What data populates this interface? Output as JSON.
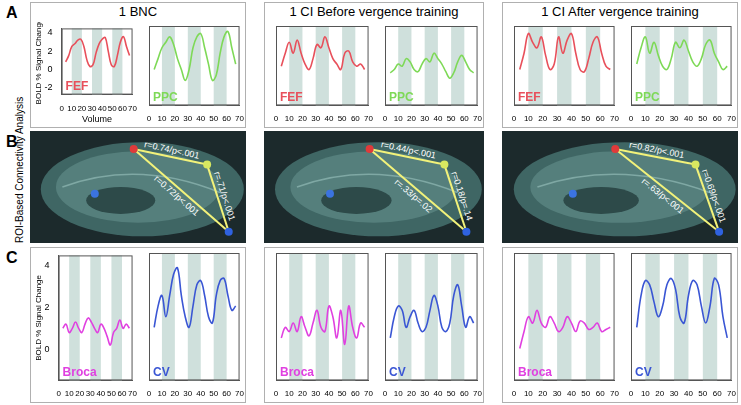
{
  "panel_labels": [
    "A",
    "B",
    "C"
  ],
  "columns": [
    "1 BNC",
    "1 CI Before vergence training",
    "1 CI After vergence training"
  ],
  "connectivity_label": "ROI-Based Connectivity Analysis",
  "connectivity": [
    {
      "edges": [
        "r=0.74/p<.001",
        "r=.71/p<.001",
        "r=0.72/p<.001"
      ]
    },
    {
      "edges": [
        "r=0.44/p<.001",
        "r=0.18/p=.14",
        "r=.33/p=.02"
      ]
    },
    {
      "edges": [
        "r=0.82/p<.001",
        "r=0.69/p<.001",
        "r=.63/p<.001"
      ]
    }
  ],
  "chart_data": [
    {
      "type": "line",
      "x_label": "Volume",
      "y_label": "BOLD % Signal Change",
      "grid": false,
      "xlim": [
        0,
        70
      ],
      "xticks": [
        0,
        10,
        20,
        30,
        40,
        50,
        60,
        70
      ],
      "ylim": [
        -2.8,
        4.5
      ],
      "yticks": [
        -2,
        0,
        2,
        4
      ],
      "task_blocks": [
        [
          10,
          20
        ],
        [
          30,
          40
        ],
        [
          50,
          60
        ]
      ],
      "x": [
        4,
        7,
        10,
        13,
        16,
        19,
        22,
        25,
        28,
        31,
        34,
        37,
        40,
        43,
        46,
        49,
        52,
        55,
        58,
        61,
        64,
        67
      ],
      "series": [
        {
          "name": "FEF",
          "color": "#e8505b",
          "values": [
            0.8,
            1.5,
            2.5,
            2.8,
            3.2,
            3.3,
            2.5,
            1.0,
            0.3,
            0.5,
            1.8,
            2.8,
            3.3,
            3.5,
            2.0,
            0.5,
            0.3,
            1.5,
            3.0,
            3.6,
            2.5,
            1.5
          ]
        }
      ]
    },
    {
      "type": "line",
      "grid": false,
      "tick_labels": "x",
      "xlim": [
        0,
        70
      ],
      "xticks": [
        0,
        10,
        20,
        30,
        40,
        50,
        60,
        70
      ],
      "ylim": [
        -2.8,
        4.5
      ],
      "yticks": [
        -2,
        0,
        2,
        4
      ],
      "task_blocks": [
        [
          10,
          20
        ],
        [
          30,
          40
        ],
        [
          50,
          60
        ]
      ],
      "x": [
        4,
        7,
        10,
        13,
        16,
        19,
        22,
        25,
        28,
        31,
        34,
        37,
        40,
        43,
        46,
        49,
        52,
        55,
        58,
        61,
        64,
        67
      ],
      "series": [
        {
          "name": "PPC",
          "color": "#7ed957",
          "values": [
            0.5,
            1.5,
            2.5,
            3.0,
            3.5,
            2.8,
            1.5,
            0.5,
            -0.5,
            0.5,
            2.5,
            3.5,
            3.8,
            2.5,
            1.0,
            -0.5,
            0.0,
            2.0,
            3.5,
            4.0,
            2.5,
            1.0
          ]
        }
      ]
    },
    {
      "type": "line",
      "grid": false,
      "tick_labels": "x",
      "xlim": [
        0,
        70
      ],
      "xticks": [
        0,
        10,
        20,
        30,
        40,
        50,
        60,
        70
      ],
      "ylim": [
        -2.8,
        4.5
      ],
      "yticks": [
        -2,
        0,
        2,
        4
      ],
      "task_blocks": [
        [
          10,
          20
        ],
        [
          30,
          40
        ],
        [
          50,
          60
        ]
      ],
      "x": [
        4,
        7,
        10,
        13,
        16,
        19,
        22,
        25,
        28,
        31,
        34,
        37,
        40,
        43,
        46,
        49,
        52,
        55,
        58,
        61,
        64,
        67
      ],
      "series": [
        {
          "name": "FEF",
          "color": "#e8505b",
          "values": [
            0.8,
            2.0,
            3.0,
            2.0,
            3.2,
            2.0,
            1.0,
            0.5,
            1.5,
            2.8,
            2.5,
            3.5,
            2.5,
            1.5,
            1.0,
            0.5,
            2.0,
            2.2,
            1.2,
            0.8,
            1.0,
            0.5
          ]
        }
      ]
    },
    {
      "type": "line",
      "grid": false,
      "tick_labels": "x",
      "xlim": [
        0,
        70
      ],
      "xticks": [
        0,
        10,
        20,
        30,
        40,
        50,
        60,
        70
      ],
      "ylim": [
        -2.8,
        4.5
      ],
      "yticks": [
        -2,
        0,
        2,
        4
      ],
      "task_blocks": [
        [
          10,
          20
        ],
        [
          30,
          40
        ],
        [
          50,
          60
        ]
      ],
      "x": [
        4,
        7,
        10,
        13,
        16,
        19,
        22,
        25,
        28,
        31,
        34,
        37,
        40,
        43,
        46,
        49,
        52,
        55,
        58,
        61,
        64,
        67
      ],
      "series": [
        {
          "name": "PPC",
          "color": "#7ed957",
          "values": [
            0.2,
            0.5,
            1.0,
            0.8,
            1.5,
            1.2,
            0.5,
            0.3,
            1.0,
            1.5,
            1.2,
            2.0,
            1.5,
            1.0,
            0.3,
            -0.3,
            0.2,
            1.2,
            1.8,
            1.2,
            0.5,
            0.2
          ]
        }
      ]
    },
    {
      "type": "line",
      "grid": false,
      "tick_labels": "x",
      "xlim": [
        0,
        70
      ],
      "xticks": [
        0,
        10,
        20,
        30,
        40,
        50,
        60,
        70
      ],
      "ylim": [
        -2.8,
        4.5
      ],
      "yticks": [
        -2,
        0,
        2,
        4
      ],
      "task_blocks": [
        [
          10,
          20
        ],
        [
          30,
          40
        ],
        [
          50,
          60
        ]
      ],
      "x": [
        4,
        7,
        10,
        13,
        16,
        19,
        22,
        25,
        28,
        31,
        34,
        37,
        40,
        43,
        46,
        49,
        52,
        55,
        58,
        61,
        64,
        67
      ],
      "series": [
        {
          "name": "FEF",
          "color": "#e8505b",
          "values": [
            0.5,
            2.0,
            3.8,
            3.0,
            2.5,
            3.5,
            1.8,
            0.5,
            1.0,
            3.5,
            2.0,
            3.2,
            3.8,
            2.0,
            0.5,
            0.3,
            1.5,
            3.0,
            3.5,
            2.0,
            0.8,
            0.5
          ]
        }
      ]
    },
    {
      "type": "line",
      "grid": false,
      "tick_labels": "x",
      "xlim": [
        0,
        70
      ],
      "xticks": [
        0,
        10,
        20,
        30,
        40,
        50,
        60,
        70
      ],
      "ylim": [
        -2.8,
        4.5
      ],
      "yticks": [
        -2,
        0,
        2,
        4
      ],
      "task_blocks": [
        [
          10,
          20
        ],
        [
          30,
          40
        ],
        [
          50,
          60
        ]
      ],
      "x": [
        4,
        7,
        10,
        13,
        16,
        19,
        22,
        25,
        28,
        31,
        34,
        37,
        40,
        43,
        46,
        49,
        52,
        55,
        58,
        61,
        64,
        67
      ],
      "series": [
        {
          "name": "PPC",
          "color": "#7ed957",
          "values": [
            1.0,
            2.5,
            3.5,
            2.0,
            3.0,
            1.8,
            0.8,
            0.5,
            1.5,
            3.0,
            2.5,
            3.2,
            2.2,
            1.2,
            0.8,
            1.5,
            2.8,
            3.2,
            2.0,
            1.2,
            0.5,
            0.8
          ]
        }
      ]
    },
    {
      "type": "line",
      "y_label": "BOLD % Signal Change",
      "grid": false,
      "xlim": [
        0,
        70
      ],
      "xticks": [
        0,
        10,
        20,
        30,
        40,
        50,
        60,
        70
      ],
      "ylim": [
        -1.5,
        4.5
      ],
      "yticks": [
        0,
        2,
        4
      ],
      "task_blocks": [
        [
          10,
          20
        ],
        [
          30,
          40
        ],
        [
          50,
          60
        ]
      ],
      "x": [
        4,
        7,
        10,
        13,
        16,
        19,
        22,
        25,
        28,
        31,
        34,
        37,
        40,
        43,
        46,
        49,
        52,
        55,
        58,
        61,
        64,
        67
      ],
      "series": [
        {
          "name": "Broca",
          "color": "#e040e0",
          "values": [
            1.0,
            1.2,
            0.8,
            1.0,
            1.3,
            1.0,
            0.8,
            1.2,
            1.5,
            1.3,
            1.0,
            0.8,
            1.2,
            1.0,
            0.6,
            0.2,
            0.8,
            1.0,
            1.4,
            1.0,
            1.2,
            1.0
          ]
        }
      ]
    },
    {
      "type": "line",
      "grid": false,
      "tick_labels": "x",
      "xlim": [
        0,
        70
      ],
      "xticks": [
        0,
        10,
        20,
        30,
        40,
        50,
        60,
        70
      ],
      "ylim": [
        -1.5,
        4.5
      ],
      "yticks": [
        0,
        2,
        4
      ],
      "task_blocks": [
        [
          10,
          20
        ],
        [
          30,
          40
        ],
        [
          50,
          60
        ]
      ],
      "x": [
        4,
        7,
        10,
        13,
        16,
        19,
        22,
        25,
        28,
        31,
        34,
        37,
        40,
        43,
        46,
        49,
        52,
        55,
        58,
        61,
        64,
        67
      ],
      "series": [
        {
          "name": "CV",
          "color": "#3a56d4",
          "values": [
            1.0,
            2.0,
            2.5,
            1.5,
            2.5,
            3.5,
            3.8,
            2.5,
            1.5,
            1.0,
            2.0,
            3.0,
            3.2,
            2.5,
            1.5,
            1.2,
            2.5,
            3.2,
            3.3,
            2.5,
            1.8,
            2.0
          ]
        }
      ]
    },
    {
      "type": "line",
      "grid": false,
      "tick_labels": "x",
      "xlim": [
        0,
        70
      ],
      "xticks": [
        0,
        10,
        20,
        30,
        40,
        50,
        60,
        70
      ],
      "ylim": [
        -1.5,
        4.5
      ],
      "yticks": [
        0,
        2,
        4
      ],
      "task_blocks": [
        [
          10,
          20
        ],
        [
          30,
          40
        ],
        [
          50,
          60
        ]
      ],
      "x": [
        4,
        7,
        10,
        13,
        16,
        19,
        22,
        25,
        28,
        31,
        34,
        37,
        40,
        43,
        46,
        49,
        52,
        55,
        58,
        61,
        64,
        67
      ],
      "series": [
        {
          "name": "Broca",
          "color": "#e040e0",
          "values": [
            0.5,
            1.0,
            0.8,
            1.2,
            0.8,
            1.5,
            1.0,
            0.6,
            1.2,
            1.8,
            1.0,
            0.8,
            2.0,
            1.5,
            0.5,
            1.8,
            0.2,
            2.0,
            1.0,
            0.5,
            1.2,
            1.0
          ]
        }
      ]
    },
    {
      "type": "line",
      "grid": false,
      "tick_labels": "x",
      "xlim": [
        0,
        70
      ],
      "xticks": [
        0,
        10,
        20,
        30,
        40,
        50,
        60,
        70
      ],
      "ylim": [
        -1.5,
        4.5
      ],
      "yticks": [
        0,
        2,
        4
      ],
      "task_blocks": [
        [
          10,
          20
        ],
        [
          30,
          40
        ],
        [
          50,
          60
        ]
      ],
      "x": [
        4,
        7,
        10,
        13,
        16,
        19,
        22,
        25,
        28,
        31,
        34,
        37,
        40,
        43,
        46,
        49,
        52,
        55,
        58,
        61,
        64,
        67
      ],
      "series": [
        {
          "name": "CV",
          "color": "#3a56d4",
          "values": [
            0.5,
            1.5,
            2.0,
            1.8,
            1.0,
            1.5,
            1.8,
            1.2,
            0.8,
            1.0,
            1.8,
            2.5,
            2.0,
            1.0,
            0.8,
            1.2,
            2.5,
            3.0,
            2.0,
            1.0,
            1.5,
            1.2
          ]
        }
      ]
    },
    {
      "type": "line",
      "grid": false,
      "tick_labels": "x",
      "xlim": [
        0,
        70
      ],
      "xticks": [
        0,
        10,
        20,
        30,
        40,
        50,
        60,
        70
      ],
      "ylim": [
        -1.5,
        4.5
      ],
      "yticks": [
        0,
        2,
        4
      ],
      "task_blocks": [
        [
          10,
          20
        ],
        [
          30,
          40
        ],
        [
          50,
          60
        ]
      ],
      "x": [
        4,
        7,
        10,
        13,
        16,
        19,
        22,
        25,
        28,
        31,
        34,
        37,
        40,
        43,
        46,
        49,
        52,
        55,
        58,
        61,
        64,
        67
      ],
      "series": [
        {
          "name": "Broca",
          "color": "#e040e0",
          "values": [
            0.0,
            0.8,
            1.5,
            1.2,
            1.8,
            1.2,
            1.0,
            1.5,
            1.2,
            0.8,
            1.0,
            1.5,
            1.2,
            0.8,
            1.3,
            1.2,
            0.9,
            1.0,
            1.2,
            0.8,
            0.9,
            1.0
          ]
        }
      ]
    },
    {
      "type": "line",
      "grid": false,
      "tick_labels": "x",
      "xlim": [
        0,
        70
      ],
      "xticks": [
        0,
        10,
        20,
        30,
        40,
        50,
        60,
        70
      ],
      "ylim": [
        -1.5,
        4.5
      ],
      "yticks": [
        0,
        2,
        4
      ],
      "task_blocks": [
        [
          10,
          20
        ],
        [
          30,
          40
        ],
        [
          50,
          60
        ]
      ],
      "x": [
        4,
        7,
        10,
        13,
        16,
        19,
        22,
        25,
        28,
        31,
        34,
        37,
        40,
        43,
        46,
        49,
        52,
        55,
        58,
        61,
        64,
        67
      ],
      "series": [
        {
          "name": "CV",
          "color": "#3a56d4",
          "values": [
            1.0,
            2.5,
            3.2,
            3.0,
            2.2,
            1.5,
            2.0,
            3.0,
            3.3,
            2.8,
            1.5,
            1.2,
            2.5,
            3.2,
            3.0,
            2.0,
            1.2,
            2.0,
            3.3,
            3.0,
            1.5,
            0.5
          ]
        }
      ]
    }
  ]
}
